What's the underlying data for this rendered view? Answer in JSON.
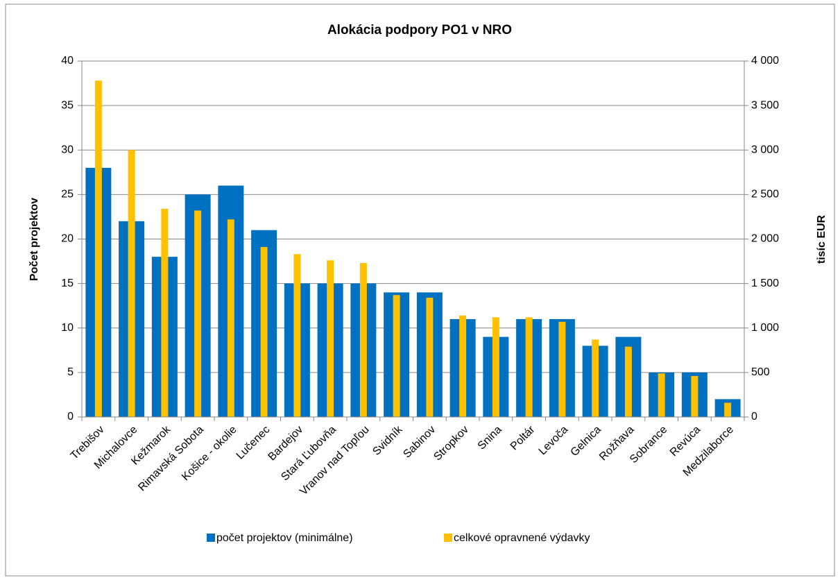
{
  "chart_data": {
    "type": "bar",
    "title": "Alokácia podpory PO1 v NRO",
    "y_label": "Počet projektov",
    "y2_label": "tisíc EUR",
    "categories": [
      "Trebišov",
      "Michalovce",
      "Kežmarok",
      "Rimavská Sobota",
      "Košice - okolie",
      "Lučenec",
      "Bardejov",
      "Stará Ľubovňa",
      "Vranov nad Topľou",
      "Svidník",
      "Sabinov",
      "Stropkov",
      "Snina",
      "Poltár",
      "Levoča",
      "Gelnica",
      "Rožňava",
      "Sobrance",
      "Revúca",
      "Medzilaborce"
    ],
    "series": [
      {
        "name": "počet projektov (minimálne)",
        "color": "#0070c0",
        "values": [
          28,
          22,
          18,
          25,
          26,
          21,
          15,
          15,
          15,
          14,
          14,
          11,
          9,
          11,
          11,
          8,
          9,
          5,
          5,
          2
        ]
      },
      {
        "name": "celkové opravnené výdavky",
        "color": "#ffc000",
        "axis": "y2",
        "values": [
          3780,
          3000,
          2340,
          2320,
          2220,
          1910,
          1830,
          1760,
          1730,
          1370,
          1340,
          1140,
          1120,
          1120,
          1070,
          870,
          790,
          490,
          460,
          160
        ]
      }
    ],
    "ylim": [
      0,
      40
    ],
    "yticks": [
      0,
      5,
      10,
      15,
      20,
      25,
      30,
      35,
      40
    ],
    "y2lim": [
      0,
      4000
    ],
    "y2ticks": [
      0,
      500,
      {
        "value": 1000,
        "label": "1 000"
      },
      {
        "value": 1500,
        "label": "1 500"
      },
      {
        "value": 2000,
        "label": "2 000"
      },
      {
        "value": 2500,
        "label": "2 500"
      },
      {
        "value": 3000,
        "label": "3 000"
      },
      {
        "value": 3500,
        "label": "3 500"
      },
      {
        "value": 4000,
        "label": "4 000"
      }
    ],
    "grid": true,
    "legend": "bottom"
  }
}
